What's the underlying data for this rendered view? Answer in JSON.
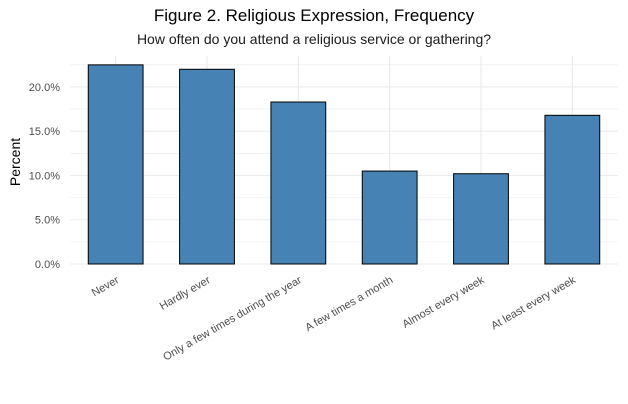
{
  "chart_data": {
    "type": "bar",
    "title": "Figure 2. Religious Expression, Frequency",
    "subtitle": "How often do you attend a religious service or gathering?",
    "xlabel": "",
    "ylabel": "Percent",
    "categories": [
      "Never",
      "Hardly ever",
      "Only a few times during the year",
      "A few times a month",
      "Almost every week",
      "At least every week"
    ],
    "values": [
      22.5,
      22.0,
      18.3,
      10.5,
      10.2,
      16.8
    ],
    "ylim": [
      0,
      23.5
    ],
    "yticks": [
      0,
      5,
      10,
      15,
      20
    ],
    "ytick_labels": [
      "0.0%",
      "5.0%",
      "10.0%",
      "15.0%",
      "20.0%"
    ],
    "grid": true,
    "bar_color": "#4682B4",
    "bar_edge_color": "#000000",
    "grid_color": "#EBEBEB"
  }
}
